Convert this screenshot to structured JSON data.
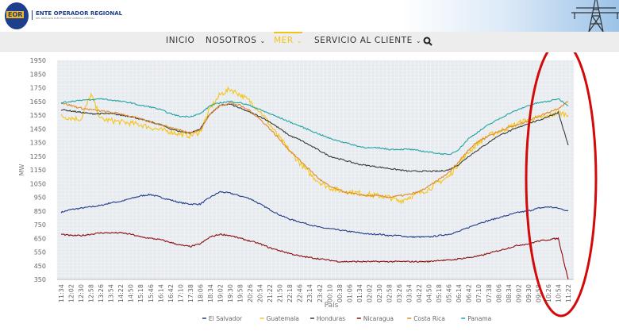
{
  "header": {
    "logo_text": "EOR",
    "org_name": "ENTE OPERADOR REGIONAL",
    "org_sub": "DEL MERCADO ELÉCTRICO DE AMÉRICA CENTRAL"
  },
  "nav": {
    "items": [
      {
        "label": "INICIO",
        "chevron": false
      },
      {
        "label": "NOSOTROS",
        "chevron": true
      },
      {
        "label": "MER",
        "chevron": true,
        "active": true
      },
      {
        "label": "SERVICIO AL CLIENTE",
        "chevron": true
      }
    ],
    "search_icon": "search-icon",
    "active_color": "#f2c21b"
  },
  "chart_data": {
    "type": "line",
    "title": "",
    "xlabel": "País",
    "ylabel": "MW",
    "ylim": [
      350,
      1950
    ],
    "yticks": [
      350,
      450,
      550,
      650,
      750,
      850,
      950,
      1050,
      1150,
      1250,
      1350,
      1450,
      1550,
      1650,
      1750,
      1850,
      1950
    ],
    "grid": true,
    "legend_position": "bottom",
    "x": [
      "11:34",
      "12:02",
      "12:30",
      "12:58",
      "13:26",
      "13:54",
      "14:22",
      "14:50",
      "15:18",
      "15:46",
      "16:14",
      "16:42",
      "17:10",
      "17:38",
      "18:06",
      "18:34",
      "19:02",
      "19:30",
      "19:58",
      "20:26",
      "20:54",
      "21:22",
      "21:50",
      "22:18",
      "22:46",
      "23:14",
      "23:42",
      "00:10",
      "00:38",
      "01:06",
      "01:34",
      "02:02",
      "02:30",
      "02:58",
      "03:26",
      "03:54",
      "04:22",
      "04:50",
      "05:18",
      "05:46",
      "06:14",
      "06:42",
      "07:10",
      "07:38",
      "08:06",
      "08:34",
      "09:02",
      "09:30",
      "09:58",
      "10:26",
      "10:54",
      "11:22"
    ],
    "series": [
      {
        "name": "El Salvador",
        "color": "#1f3a8a",
        "values": [
          840,
          860,
          870,
          880,
          890,
          910,
          920,
          940,
          960,
          970,
          950,
          930,
          910,
          900,
          900,
          950,
          990,
          980,
          960,
          940,
          900,
          860,
          820,
          790,
          770,
          750,
          730,
          720,
          710,
          700,
          690,
          680,
          680,
          670,
          670,
          660,
          660,
          660,
          670,
          680,
          700,
          730,
          760,
          780,
          800,
          820,
          840,
          850,
          870,
          880,
          870,
          850
        ]
      },
      {
        "name": "Guatemala",
        "color": "#f5c518",
        "values": [
          1540,
          1530,
          1520,
          1700,
          1520,
          1510,
          1500,
          1490,
          1480,
          1460,
          1440,
          1430,
          1410,
          1400,
          1430,
          1600,
          1700,
          1740,
          1700,
          1650,
          1580,
          1480,
          1380,
          1290,
          1200,
          1120,
          1060,
          1020,
          1000,
          990,
          980,
          970,
          960,
          950,
          920,
          950,
          980,
          1010,
          1060,
          1100,
          1200,
          1280,
          1350,
          1400,
          1430,
          1460,
          1490,
          1520,
          1530,
          1540,
          1570,
          1550
        ]
      },
      {
        "name": "Honduras",
        "color": "#3a3a3a",
        "values": [
          1590,
          1580,
          1570,
          1560,
          1560,
          1560,
          1550,
          1540,
          1520,
          1500,
          1480,
          1450,
          1430,
          1420,
          1450,
          1560,
          1620,
          1630,
          1600,
          1570,
          1540,
          1500,
          1450,
          1400,
          1370,
          1330,
          1290,
          1250,
          1230,
          1210,
          1190,
          1180,
          1170,
          1160,
          1150,
          1140,
          1140,
          1140,
          1140,
          1150,
          1190,
          1250,
          1300,
          1350,
          1400,
          1430,
          1460,
          1490,
          1510,
          1540,
          1570,
          1330
        ]
      },
      {
        "name": "Nicaragua",
        "color": "#8b0a0a",
        "values": [
          680,
          670,
          670,
          680,
          690,
          690,
          690,
          680,
          660,
          650,
          640,
          620,
          600,
          590,
          610,
          660,
          680,
          670,
          650,
          630,
          610,
          580,
          560,
          540,
          520,
          510,
          500,
          490,
          480,
          480,
          480,
          480,
          480,
          480,
          480,
          480,
          480,
          480,
          490,
          490,
          500,
          510,
          520,
          540,
          560,
          580,
          600,
          610,
          630,
          640,
          650,
          350
        ]
      },
      {
        "name": "Costa Rica",
        "color": "#e0892a",
        "values": [
          1640,
          1620,
          1600,
          1590,
          1580,
          1570,
          1560,
          1540,
          1520,
          1500,
          1480,
          1460,
          1440,
          1420,
          1440,
          1560,
          1620,
          1640,
          1620,
          1580,
          1520,
          1450,
          1370,
          1290,
          1220,
          1150,
          1080,
          1030,
          1000,
          980,
          970,
          960,
          960,
          950,
          960,
          970,
          990,
          1030,
          1080,
          1130,
          1210,
          1300,
          1360,
          1400,
          1430,
          1460,
          1480,
          1510,
          1540,
          1570,
          1600,
          1650
        ]
      },
      {
        "name": "Panama",
        "color": "#22a3a3",
        "values": [
          1640,
          1650,
          1660,
          1660,
          1670,
          1660,
          1650,
          1640,
          1620,
          1610,
          1590,
          1560,
          1540,
          1540,
          1560,
          1620,
          1640,
          1650,
          1640,
          1620,
          1590,
          1560,
          1530,
          1500,
          1470,
          1440,
          1410,
          1380,
          1360,
          1340,
          1320,
          1310,
          1310,
          1300,
          1300,
          1300,
          1290,
          1280,
          1270,
          1260,
          1300,
          1380,
          1430,
          1480,
          1520,
          1560,
          1590,
          1620,
          1640,
          1650,
          1670,
          1620
        ]
      }
    ]
  }
}
